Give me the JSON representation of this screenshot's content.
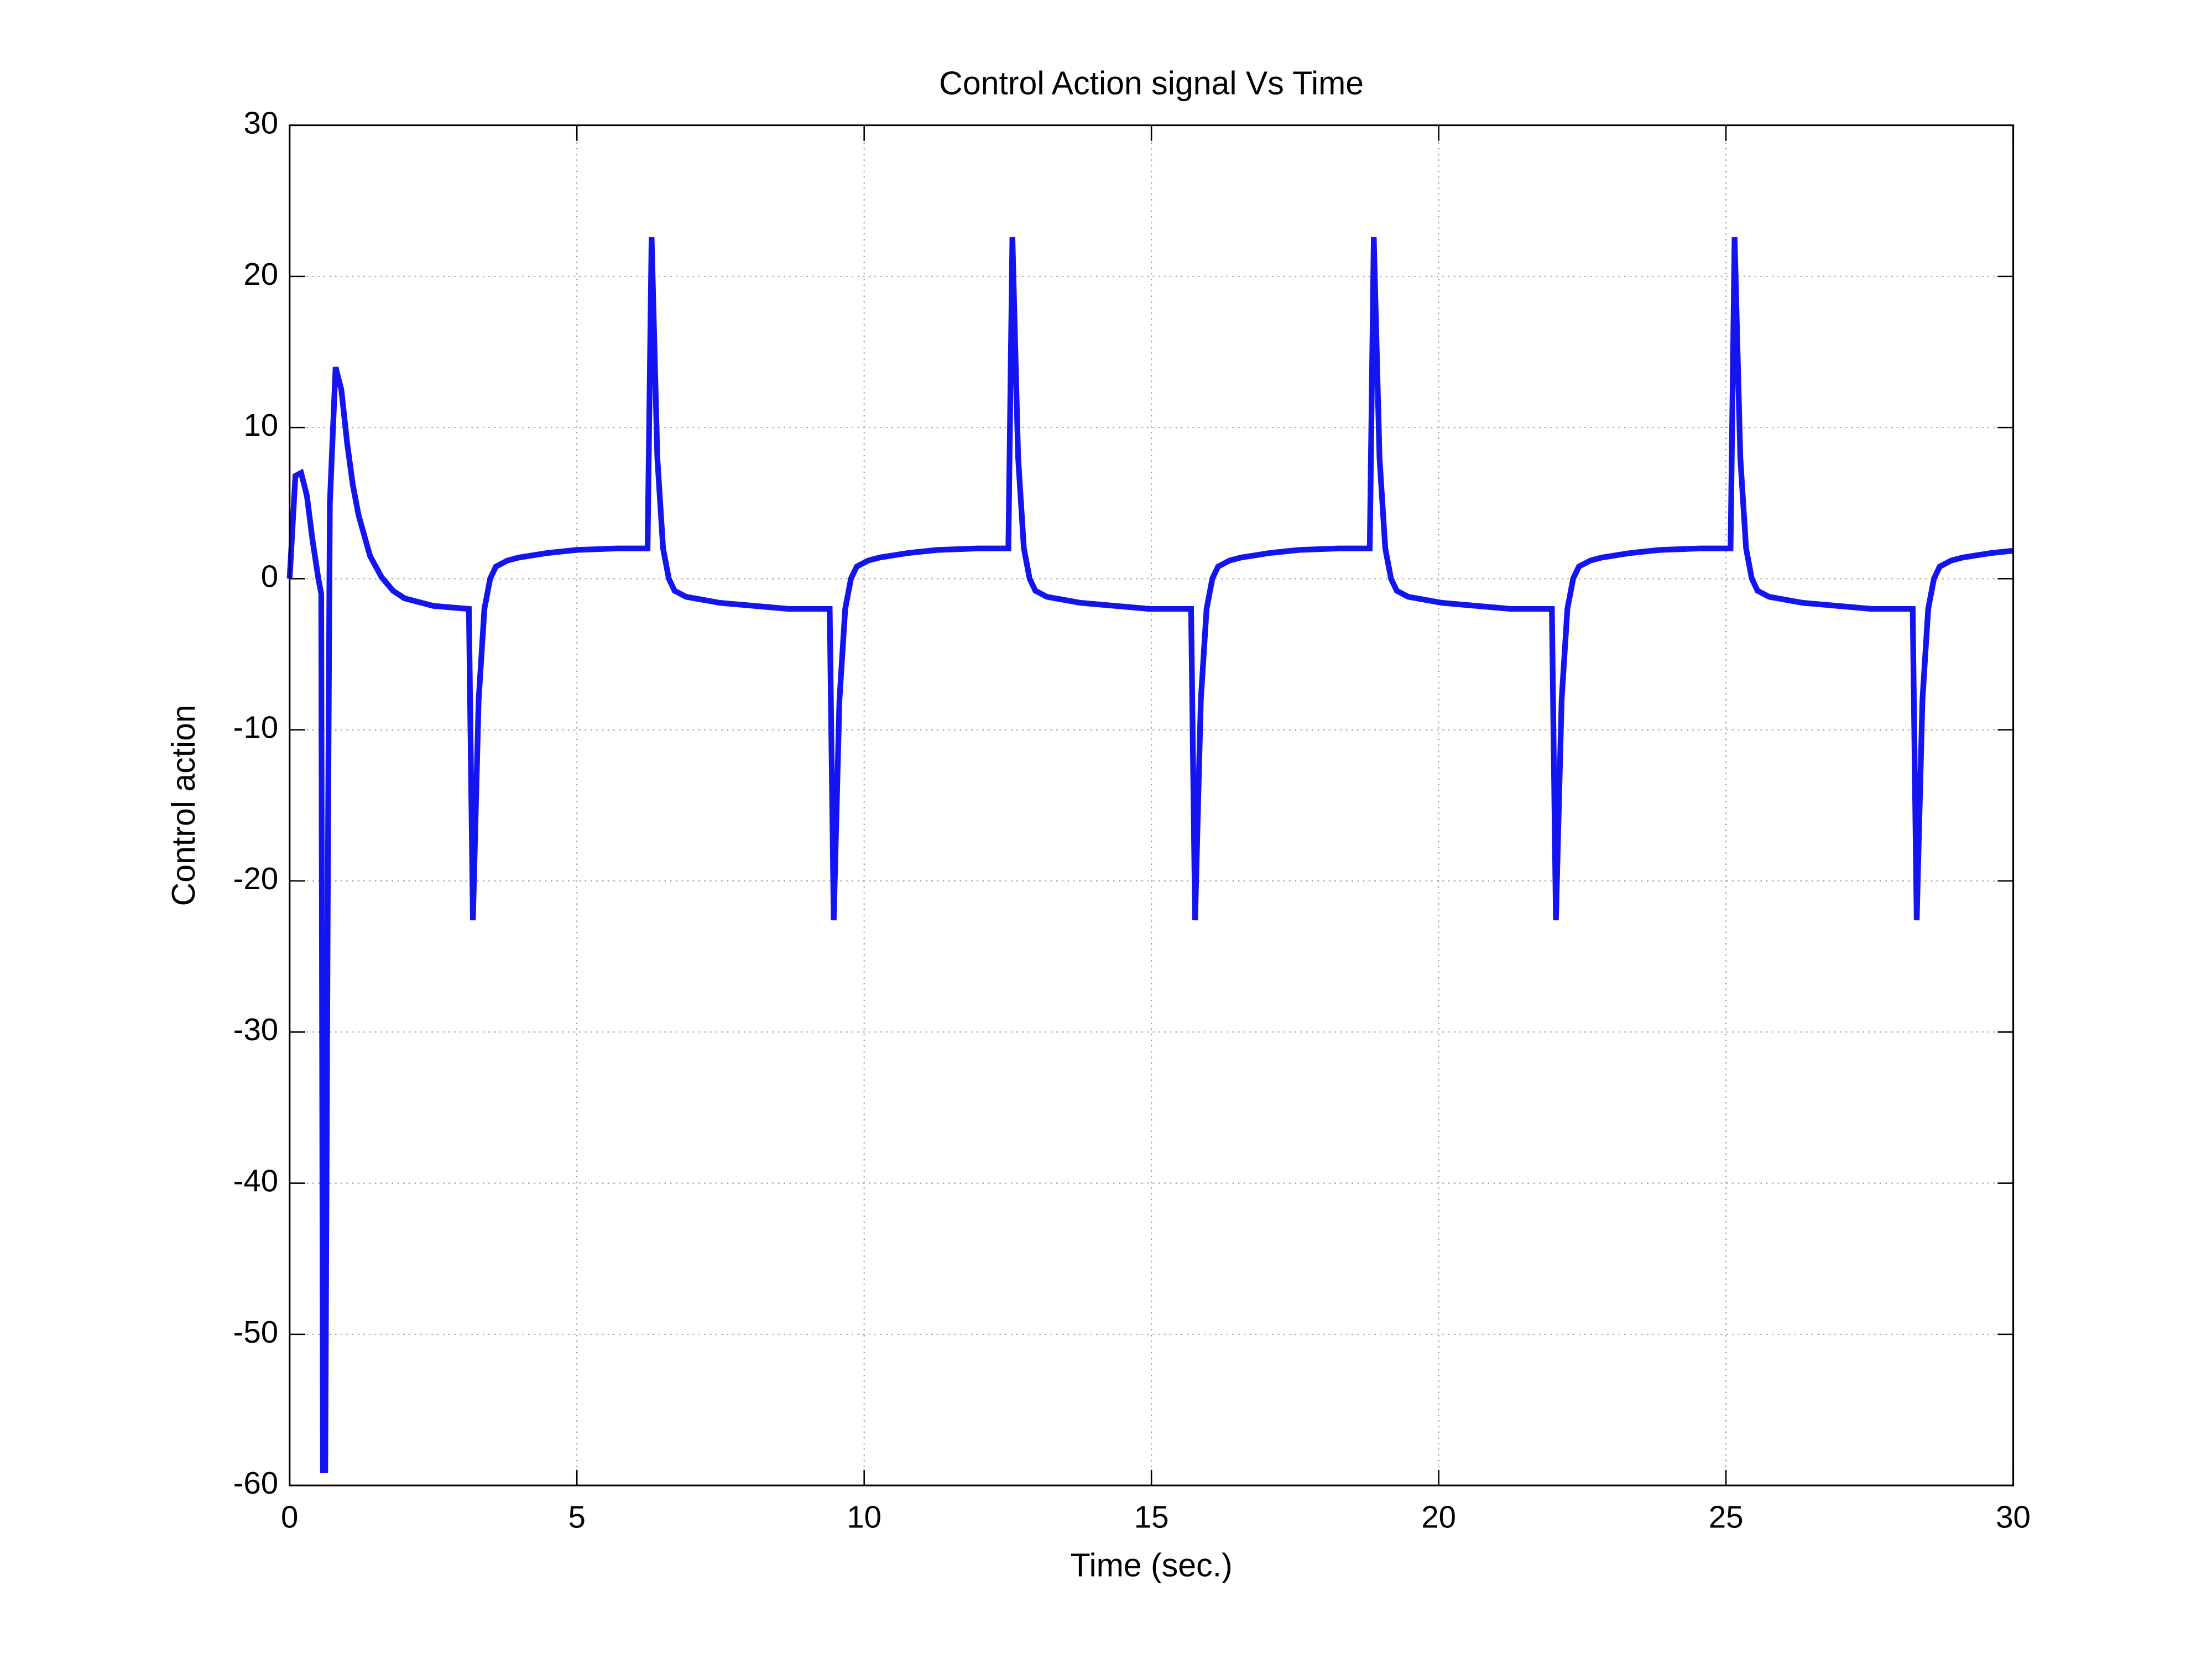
{
  "chart_data": {
    "type": "line",
    "title": "Control Action signal Vs Time",
    "xlabel": "Time (sec.)",
    "ylabel": "Control action",
    "xlim": [
      0,
      30
    ],
    "ylim": [
      -60,
      30
    ],
    "xticks": [
      0,
      5,
      10,
      15,
      20,
      25,
      30
    ],
    "yticks": [
      -60,
      -50,
      -40,
      -30,
      -20,
      -10,
      0,
      10,
      20,
      30
    ],
    "grid": true,
    "series": [
      {
        "color": "#1414f0",
        "x": [
          0,
          0.1,
          0.2,
          0.3,
          0.4,
          0.5,
          0.55,
          0.58,
          0.62,
          0.67,
          0.7,
          0.8,
          0.9,
          1.0,
          1.1,
          1.2,
          1.4,
          1.6,
          1.8,
          2.0,
          2.5,
          3.12,
          3.19,
          3.29,
          3.39,
          3.49,
          3.59,
          3.79,
          3.99,
          4.49,
          4.99,
          5.69,
          6.23,
          6.3,
          6.4,
          6.5,
          6.6,
          6.7,
          6.9,
          7.49,
          8.09,
          8.69,
          9.4,
          9.47,
          9.57,
          9.67,
          9.77,
          9.87,
          10.07,
          10.27,
          10.77,
          11.27,
          11.97,
          12.51,
          12.58,
          12.68,
          12.78,
          12.88,
          12.98,
          13.18,
          13.77,
          14.37,
          14.97,
          15.69,
          15.76,
          15.86,
          15.96,
          16.06,
          16.16,
          16.36,
          16.56,
          17.06,
          17.56,
          18.26,
          18.8,
          18.87,
          18.97,
          19.07,
          19.17,
          19.27,
          19.47,
          20.06,
          20.66,
          21.26,
          21.97,
          22.04,
          22.14,
          22.24,
          22.34,
          22.44,
          22.64,
          22.84,
          23.34,
          23.84,
          24.54,
          25.08,
          25.15,
          25.25,
          25.35,
          25.45,
          25.55,
          25.75,
          26.34,
          26.94,
          27.54,
          28.25,
          28.32,
          28.42,
          28.52,
          28.62,
          28.72,
          28.92,
          29.12,
          29.62,
          30
        ],
        "values": [
          0,
          6.8,
          7,
          5.5,
          2.5,
          0,
          -1,
          -59,
          -59,
          -16,
          5,
          14,
          12.5,
          9,
          6.2,
          4.2,
          1.5,
          0.1,
          -0.8,
          -1.3,
          -1.8,
          -2,
          -22.6,
          -8,
          -2,
          0,
          0.8,
          1.2,
          1.4,
          1.7,
          1.9,
          2,
          2,
          22.6,
          8,
          2,
          0,
          -0.8,
          -1.2,
          -1.6,
          -1.8,
          -2,
          -2,
          -22.6,
          -8,
          -2,
          0,
          0.8,
          1.2,
          1.4,
          1.7,
          1.9,
          2,
          2,
          22.6,
          8,
          2,
          0,
          -0.8,
          -1.2,
          -1.6,
          -1.8,
          -2,
          -2,
          -22.6,
          -8,
          -2,
          0,
          0.8,
          1.2,
          1.4,
          1.7,
          1.9,
          2,
          2,
          22.6,
          8,
          2,
          0,
          -0.8,
          -1.2,
          -1.6,
          -1.8,
          -2,
          -2,
          -22.6,
          -8,
          -2,
          0,
          0.8,
          1.2,
          1.4,
          1.7,
          1.9,
          2,
          2,
          22.6,
          8,
          2,
          0,
          -0.8,
          -1.2,
          -1.6,
          -1.8,
          -2,
          -2,
          -22.6,
          -8,
          -2,
          0,
          0.8,
          1.2,
          1.4,
          1.7,
          1.85
        ]
      }
    ]
  }
}
